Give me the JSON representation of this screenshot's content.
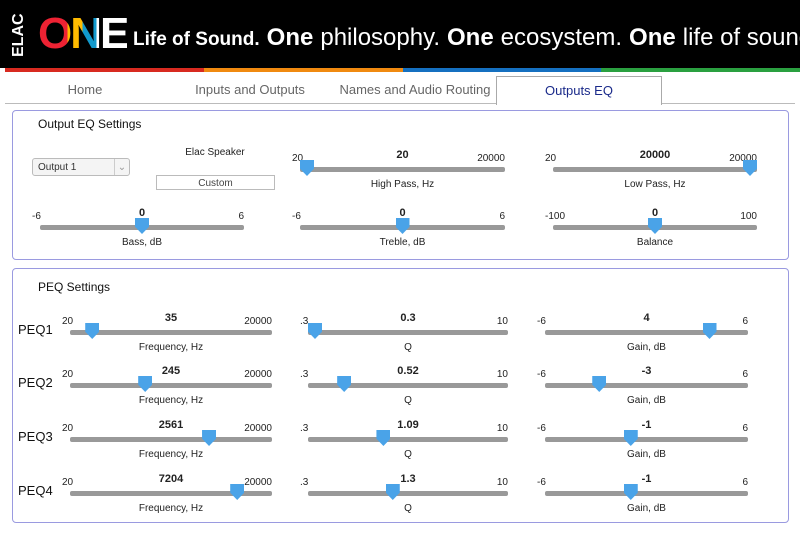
{
  "header": {
    "brand_top": "ELAC",
    "brand_big": "ONE",
    "tagline": [
      "Life of Sound.",
      "One",
      "philosophy.",
      "One",
      "ecosystem.",
      "One",
      "life of sound."
    ]
  },
  "tabs": {
    "items": [
      "Home",
      "Inputs and Outputs",
      "Names and Audio Routing",
      "Outputs EQ"
    ],
    "active": 3
  },
  "output_eq": {
    "title": "Output EQ Settings",
    "output_select": "Output 1",
    "speaker_label": "Elac Speaker",
    "preset": "Custom",
    "sliders": [
      {
        "label": "High Pass, Hz",
        "min": "20",
        "max": "20000",
        "value": "20",
        "scale": "log"
      },
      {
        "label": "Low Pass, Hz",
        "min": "20",
        "max": "20000",
        "value": "20000",
        "scale": "log"
      },
      {
        "label": "Bass, dB",
        "min": "-6",
        "max": "6",
        "value": "0",
        "scale": "linear"
      },
      {
        "label": "Treble, dB",
        "min": "-6",
        "max": "6",
        "value": "0",
        "scale": "linear"
      },
      {
        "label": "Balance",
        "min": "-100",
        "max": "100",
        "value": "0",
        "scale": "linear"
      }
    ]
  },
  "peq": {
    "title": "PEQ Settings",
    "rows": [
      {
        "label": "PEQ1",
        "sliders": [
          {
            "label": "Frequency, Hz",
            "min": "20",
            "max": "20000",
            "value": "35",
            "scale": "log"
          },
          {
            "label": "Q",
            "min": ".3",
            "max": "10",
            "value": "0.3",
            "scale": "log"
          },
          {
            "label": "Gain, dB",
            "min": "-6",
            "max": "6",
            "value": "4",
            "scale": "linear"
          }
        ]
      },
      {
        "label": "PEQ2",
        "sliders": [
          {
            "label": "Frequency, Hz",
            "min": "20",
            "max": "20000",
            "value": "245",
            "scale": "log"
          },
          {
            "label": "Q",
            "min": ".3",
            "max": "10",
            "value": "0.52",
            "scale": "log"
          },
          {
            "label": "Gain, dB",
            "min": "-6",
            "max": "6",
            "value": "-3",
            "scale": "linear"
          }
        ]
      },
      {
        "label": "PEQ3",
        "sliders": [
          {
            "label": "Frequency, Hz",
            "min": "20",
            "max": "20000",
            "value": "2561",
            "scale": "log"
          },
          {
            "label": "Q",
            "min": ".3",
            "max": "10",
            "value": "1.09",
            "scale": "log"
          },
          {
            "label": "Gain, dB",
            "min": "-6",
            "max": "6",
            "value": "-1",
            "scale": "linear"
          }
        ]
      },
      {
        "label": "PEQ4",
        "sliders": [
          {
            "label": "Frequency, Hz",
            "min": "20",
            "max": "20000",
            "value": "7204",
            "scale": "log"
          },
          {
            "label": "Q",
            "min": ".3",
            "max": "10",
            "value": "1.3",
            "scale": "log"
          },
          {
            "label": "Gain, dB",
            "min": "-6",
            "max": "6",
            "value": "-1",
            "scale": "linear"
          }
        ]
      }
    ]
  }
}
